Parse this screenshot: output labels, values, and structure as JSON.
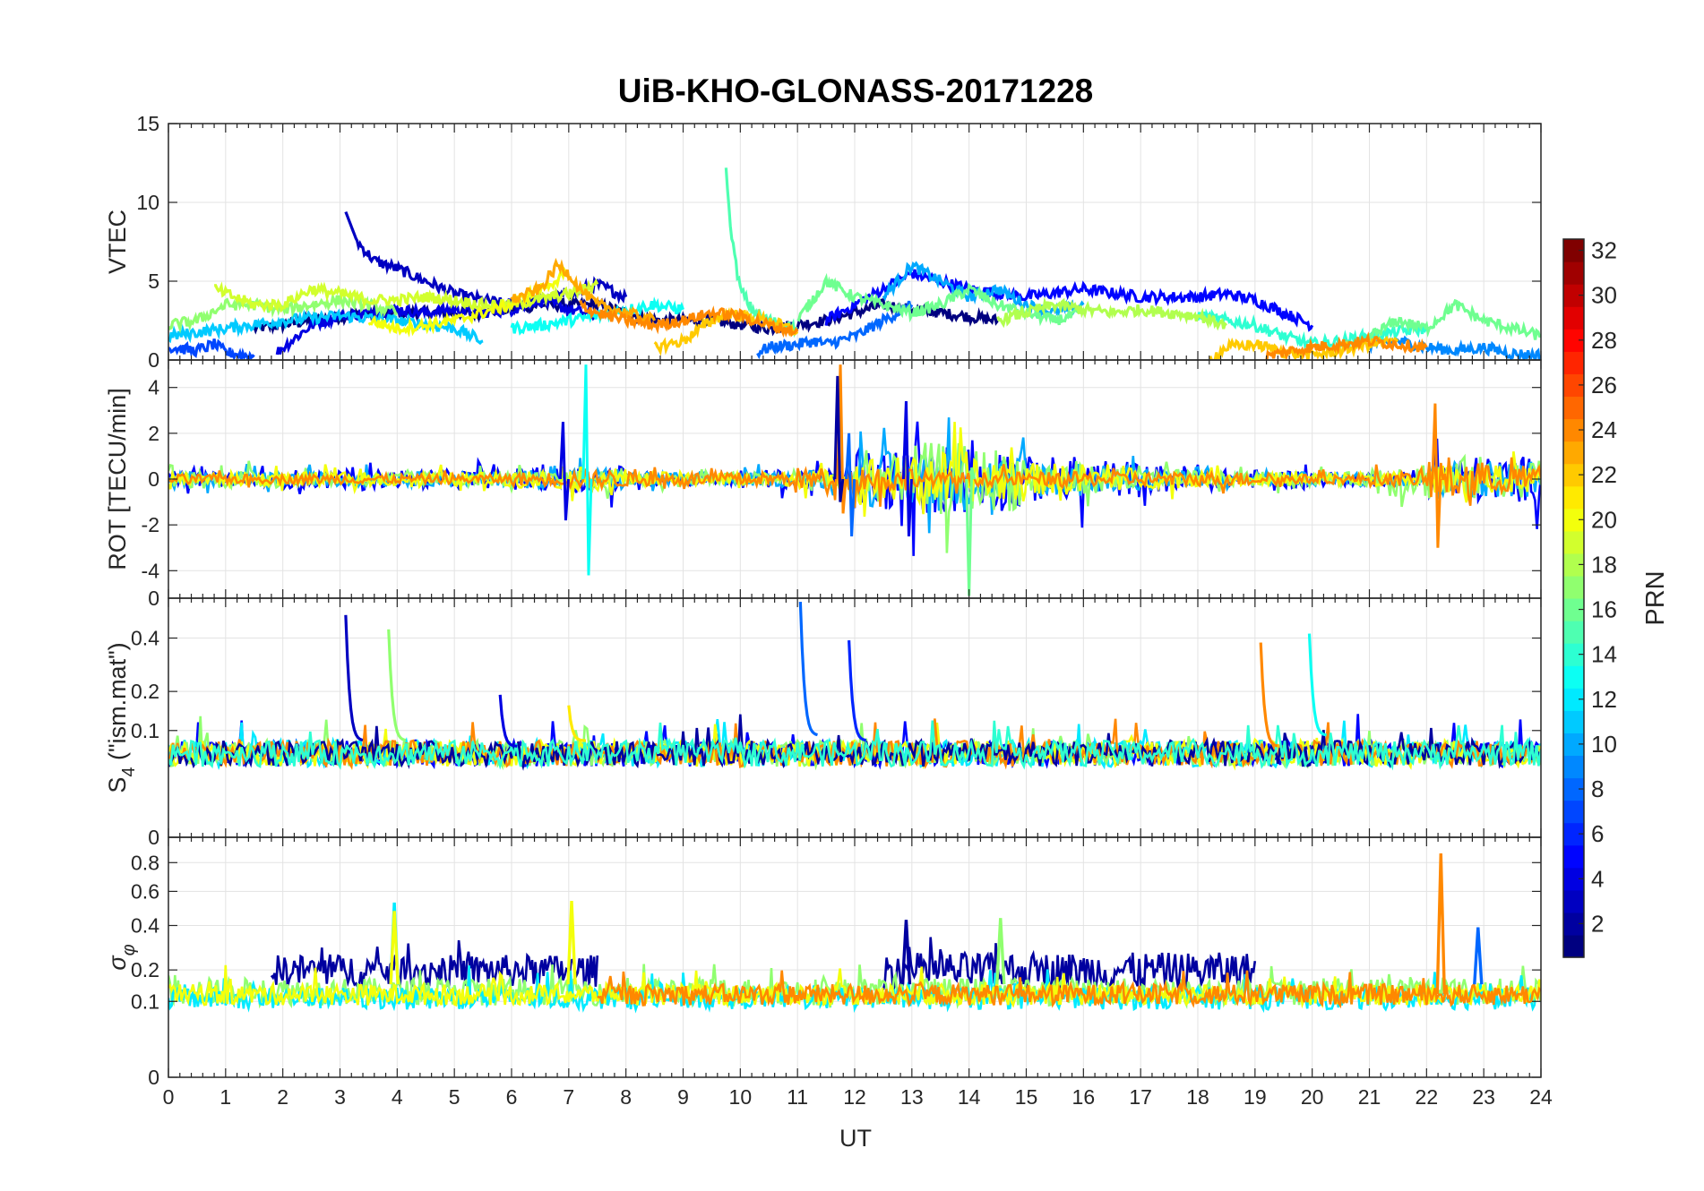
{
  "chart_data": {
    "type": "line",
    "title": "UiB-KHO-GLONASS-20171228",
    "xlabel": "UT",
    "xlim": [
      0,
      24
    ],
    "x_ticks": [
      0,
      1,
      2,
      3,
      4,
      5,
      6,
      7,
      8,
      9,
      10,
      11,
      12,
      13,
      14,
      15,
      16,
      17,
      18,
      19,
      20,
      21,
      22,
      23,
      24
    ],
    "grid": true,
    "colorbar": {
      "label": "PRN",
      "colormap": "jet",
      "range": [
        1,
        32
      ],
      "ticks": [
        2,
        4,
        6,
        8,
        10,
        12,
        14,
        16,
        18,
        20,
        22,
        24,
        26,
        28,
        30,
        32
      ]
    },
    "panels": [
      {
        "ylabel": "VTEC",
        "ylim": [
          0,
          15
        ],
        "y_ticks": [
          0,
          5,
          10,
          15
        ],
        "series": [
          {
            "prn": 1,
            "x": [
              1.5,
              2.5,
              3.5,
              4.5,
              5.5,
              6.5,
              7.5,
              8.5,
              9.5,
              10.5,
              11.5,
              12.5,
              13.5,
              14.5
            ],
            "y": [
              2.0,
              2.5,
              3.0,
              3.0,
              3.0,
              3.5,
              3.5,
              2.5,
              2.5,
              2.0,
              2.5,
              3.5,
              3.0,
              2.5
            ]
          },
          {
            "prn": 3,
            "x": [
              3.1,
              3.3,
              3.6,
              4.0,
              4.5,
              5.0,
              5.5,
              6.0,
              6.5,
              7.0,
              7.5,
              8.0
            ],
            "y": [
              9.4,
              7.5,
              6.3,
              5.8,
              5.0,
              4.2,
              3.8,
              3.5,
              3.8,
              4.2,
              4.8,
              4.0
            ]
          },
          {
            "prn": 4,
            "x": [
              1.9,
              2.5,
              3.0,
              3.5,
              4.0,
              4.5,
              5.0,
              5.5,
              6.0,
              6.5,
              7.0,
              7.5
            ],
            "y": [
              0.5,
              2.2,
              2.8,
              3.0,
              3.2,
              3.0,
              3.2,
              3.0,
              3.2,
              3.8,
              3.2,
              2.8
            ]
          },
          {
            "prn": 5,
            "x": [
              11.5,
              12.0,
              12.5,
              13.0,
              13.5,
              14.0,
              15.0,
              16.0,
              17.0,
              18.0,
              18.5,
              19.0,
              19.5,
              20.0
            ],
            "y": [
              2.5,
              3.5,
              4.5,
              5.5,
              5.0,
              4.5,
              4.0,
              4.5,
              4.0,
              4.0,
              4.2,
              3.8,
              3.0,
              2.2
            ]
          },
          {
            "prn": 7,
            "x": [
              0.0,
              0.5,
              0.8,
              1.0,
              1.5
            ],
            "y": [
              0.8,
              0.6,
              1.0,
              0.5,
              0.2
            ]
          },
          {
            "prn": 8,
            "x": [
              10.3,
              10.5,
              11.0,
              11.3,
              11.5,
              12.0,
              12.5,
              13.0
            ],
            "y": [
              0.5,
              0.8,
              1.0,
              1.2,
              1.0,
              1.5,
              2.5,
              3.5
            ]
          },
          {
            "prn": 9,
            "x": [
              21.0,
              21.5,
              22.0,
              22.5,
              23.0,
              23.5,
              24.0
            ],
            "y": [
              1.0,
              1.2,
              0.8,
              0.6,
              0.8,
              0.4,
              0.3
            ]
          },
          {
            "prn": 10,
            "x": [
              12.5,
              13.0,
              13.5,
              14.0,
              14.5,
              15.0,
              15.5,
              16.0
            ],
            "y": [
              4.0,
              6.0,
              5.0,
              4.0,
              4.5,
              3.5,
              3.0,
              3.5
            ]
          },
          {
            "prn": 11,
            "x": [
              0.0,
              1.0,
              2.0,
              3.0,
              4.0,
              5.0,
              5.5
            ],
            "y": [
              1.5,
              2.0,
              2.5,
              2.8,
              2.5,
              2.0,
              1.2
            ]
          },
          {
            "prn": 13,
            "x": [
              6.0,
              6.5,
              7.0,
              7.5,
              8.0,
              8.5,
              9.0
            ],
            "y": [
              2.0,
              2.2,
              2.5,
              2.8,
              3.2,
              3.5,
              3.2
            ]
          },
          {
            "prn": 14,
            "x": [
              18.0,
              18.5,
              19.0,
              19.5,
              20.0,
              20.5,
              21.0,
              21.5,
              22.0
            ],
            "y": [
              2.8,
              2.5,
              2.2,
              1.5,
              1.0,
              1.2,
              1.5,
              1.8,
              2.0
            ]
          },
          {
            "prn": 15,
            "x": [
              9.75,
              9.8,
              9.9,
              10.0,
              10.2,
              10.5,
              10.8,
              11.0
            ],
            "y": [
              12.2,
              9.5,
              6.5,
              4.5,
              3.2,
              2.5,
              2.2,
              2.0
            ]
          },
          {
            "prn": 16,
            "x": [
              11.0,
              11.5,
              12.0,
              12.5,
              13.0,
              13.5,
              14.0,
              14.5,
              15.0,
              15.5,
              16.0
            ],
            "y": [
              2.5,
              5.0,
              4.0,
              3.5,
              3.0,
              3.5,
              4.5,
              3.5,
              3.0,
              2.5,
              3.0
            ]
          },
          {
            "prn": 16,
            "x": [
              21.0,
              21.5,
              22.0,
              22.5,
              23.0,
              23.5,
              24.0
            ],
            "y": [
              1.5,
              2.5,
              2.0,
              3.5,
              2.5,
              2.0,
              1.5
            ]
          },
          {
            "prn": 17,
            "x": [
              0.0,
              0.5,
              1.0,
              1.5,
              2.0,
              2.5,
              3.0,
              3.5,
              4.0
            ],
            "y": [
              2.2,
              2.5,
              3.5,
              3.5,
              3.2,
              3.5,
              3.8,
              3.5,
              3.0
            ]
          },
          {
            "prn": 18,
            "x": [
              14.5,
              15.0,
              15.5,
              16.0,
              16.5,
              17.0,
              17.5,
              18.0,
              18.5
            ],
            "y": [
              2.5,
              3.0,
              3.5,
              3.2,
              3.0,
              3.2,
              3.0,
              2.8,
              2.2
            ]
          },
          {
            "prn": 19,
            "x": [
              0.8,
              1.5,
              2.0,
              2.5,
              3.0,
              3.5,
              4.0,
              4.5,
              5.0,
              5.5,
              6.0,
              7.0,
              7.5
            ],
            "y": [
              4.5,
              3.5,
              3.5,
              4.5,
              4.2,
              3.8,
              3.8,
              4.0,
              3.8,
              3.5,
              3.5,
              4.2,
              4.8
            ]
          },
          {
            "prn": 20,
            "x": [
              3.5,
              4.0,
              4.5,
              5.0,
              5.5,
              6.0,
              6.5,
              7.0
            ],
            "y": [
              2.5,
              2.0,
              2.2,
              2.5,
              3.0,
              3.5,
              4.5,
              5.5
            ]
          },
          {
            "prn": 22,
            "x": [
              8.5,
              9.0,
              9.5,
              9.8,
              10.0,
              10.5,
              11.0
            ],
            "y": [
              0.8,
              1.2,
              2.5,
              3.0,
              2.8,
              2.5,
              1.8
            ]
          },
          {
            "prn": 23,
            "x": [
              6.0,
              6.5,
              6.8,
              7.0,
              7.2,
              7.5,
              8.0,
              8.5
            ],
            "y": [
              3.8,
              4.5,
              6.0,
              5.5,
              4.5,
              3.5,
              3.0,
              2.5
            ]
          },
          {
            "prn": 22,
            "x": [
              18.2,
              18.5,
              19.0,
              19.5,
              20.0,
              20.5,
              21.0,
              21.5
            ],
            "y": [
              0.0,
              0.8,
              1.0,
              0.5,
              0.3,
              0.6,
              1.0,
              1.2
            ]
          },
          {
            "prn": 24,
            "x": [
              7.2,
              7.5,
              8.0,
              8.5,
              9.0,
              9.5,
              10.0,
              10.5,
              11.0
            ],
            "y": [
              3.5,
              3.0,
              2.5,
              2.2,
              2.5,
              3.0,
              2.8,
              2.2,
              1.8
            ]
          },
          {
            "prn": 24,
            "x": [
              19.2,
              19.5,
              20.0,
              20.5,
              21.0,
              21.5,
              22.0
            ],
            "y": [
              0.2,
              0.5,
              0.8,
              1.0,
              1.2,
              1.0,
              0.8
            ]
          }
        ]
      },
      {
        "ylabel": "ROT [TECU/min]",
        "ylim": [
          -5.2,
          5.2
        ],
        "y_ticks": [
          -4,
          -2,
          0,
          2,
          4
        ],
        "spikes": [
          {
            "prn": 13,
            "x": 7.3,
            "y": [
              5.0,
              -4.2
            ]
          },
          {
            "prn": 24,
            "x": 11.75,
            "y": [
              5.0,
              -1.5
            ]
          },
          {
            "prn": 2,
            "x": 11.7,
            "y": [
              4.5,
              -1.0
            ]
          },
          {
            "prn": 16,
            "x": 14.0,
            "y": [
              -5.1,
              0.5
            ]
          },
          {
            "prn": 4,
            "x": 12.9,
            "y": [
              3.4,
              -2.5
            ]
          },
          {
            "prn": 24,
            "x": 22.15,
            "y": [
              3.3,
              -3.0
            ]
          },
          {
            "prn": 4,
            "x": 6.9,
            "y": [
              2.5,
              -1.8
            ]
          },
          {
            "prn": 8,
            "x": 11.9,
            "y": [
              2.0,
              -2.5
            ]
          }
        ],
        "noise_bands": [
          {
            "prn": 5,
            "x": [
              0,
              24
            ],
            "amplitude": [
              0.3,
              0.3,
              0.4,
              0.4,
              0.4,
              0.4,
              0.5,
              0.6,
              0.3,
              0.3,
              0.4,
              0.4,
              1.4,
              1.6,
              1.4,
              1.0,
              0.8,
              0.6,
              0.4,
              0.4,
              0.3,
              0.3,
              1.0,
              1.0,
              0.3
            ]
          },
          {
            "prn": 10,
            "x": [
              0,
              24
            ],
            "amplitude": [
              0.3,
              0.3,
              0.3,
              0.3,
              0.3,
              0.3,
              0.4,
              0.5,
              0.3,
              0.3,
              0.3,
              0.4,
              1.2,
              1.4,
              1.0,
              0.8,
              0.6,
              0.5,
              0.3,
              0.3,
              0.3,
              0.3,
              0.8,
              0.8,
              0.3
            ]
          },
          {
            "prn": 17,
            "x": [
              0,
              24
            ],
            "amplitude": [
              0.4,
              0.4,
              0.3,
              0.3,
              0.3,
              0.3,
              0.3,
              0.4,
              0.3,
              0.3,
              0.3,
              0.4,
              1.0,
              1.6,
              1.4,
              0.8,
              0.6,
              0.4,
              0.3,
              0.3,
              0.3,
              0.8,
              1.0,
              0.8,
              0.3
            ]
          },
          {
            "prn": 20,
            "x": [
              0,
              24
            ],
            "amplitude": [
              0.3,
              0.3,
              0.3,
              0.3,
              0.3,
              0.3,
              0.4,
              0.5,
              0.3,
              0.3,
              0.3,
              0.4,
              1.0,
              1.2,
              1.0,
              0.7,
              0.5,
              0.4,
              0.3,
              0.3,
              0.3,
              0.3,
              0.6,
              0.6,
              0.3
            ]
          },
          {
            "prn": 24,
            "x": [
              0,
              24
            ],
            "amplitude": [
              0.2,
              0.2,
              0.2,
              0.2,
              0.2,
              0.2,
              0.3,
              0.4,
              0.3,
              0.3,
              0.3,
              0.5,
              0.6,
              0.3,
              0.3,
              0.3,
              0.3,
              0.3,
              0.3,
              0.2,
              0.2,
              0.3,
              1.0,
              0.6,
              0.2
            ]
          }
        ]
      },
      {
        "ylabel": "S4 (\"ism.mat\")",
        "ylabel_main": "S",
        "ylabel_sub": "4",
        "ylabel_rest": " (\"ism.mat\")",
        "ylim": [
          0,
          0.6
        ],
        "scale": "reciprocal",
        "y_ticks": [
          0,
          0.1,
          0.2,
          0.4
        ],
        "y_top_label": "0",
        "spikes": [
          {
            "prn": 3,
            "x": 3.1,
            "y": [
              0.51,
              0.08
            ]
          },
          {
            "prn": 17,
            "x": 3.85,
            "y": [
              0.44,
              0.08
            ]
          },
          {
            "prn": 8,
            "x": 11.05,
            "y": [
              0.58,
              0.09
            ]
          },
          {
            "prn": 6,
            "x": 11.9,
            "y": [
              0.39,
              0.08
            ]
          },
          {
            "prn": 24,
            "x": 19.1,
            "y": [
              0.38,
              0.07
            ]
          },
          {
            "prn": 13,
            "x": 19.95,
            "y": [
              0.42,
              0.09
            ]
          },
          {
            "prn": 4,
            "x": 5.8,
            "y": [
              0.19,
              0.07
            ]
          },
          {
            "prn": 21,
            "x": 7.0,
            "y": [
              0.16,
              0.08
            ]
          }
        ],
        "baseline": 0.06
      },
      {
        "ylabel": "σφ",
        "ylim": [
          0,
          1.0
        ],
        "scale": "sqrt",
        "y_ticks": [
          0,
          0.1,
          0.2,
          0.4,
          0.6,
          0.8
        ],
        "spikes": [
          {
            "prn": 24,
            "x": 22.25,
            "y": [
              0.87,
              0.12
            ]
          },
          {
            "prn": 20,
            "x": 7.05,
            "y": [
              0.54,
              0.15
            ]
          },
          {
            "prn": 12,
            "x": 3.95,
            "y": [
              0.53,
              0.15
            ]
          },
          {
            "prn": 20,
            "x": 3.95,
            "y": [
              0.48,
              0.15
            ]
          },
          {
            "prn": 2,
            "x": 12.9,
            "y": [
              0.43,
              0.15
            ]
          },
          {
            "prn": 17,
            "x": 14.55,
            "y": [
              0.44,
              0.15
            ]
          },
          {
            "prn": 8,
            "x": 22.9,
            "y": [
              0.39,
              0.15
            ]
          }
        ],
        "bands": [
          {
            "prn": 2,
            "x": [
              1.8,
              7.5
            ],
            "mean": 0.2,
            "amp": 0.06
          },
          {
            "prn": 2,
            "x": [
              12.5,
              19.0
            ],
            "mean": 0.2,
            "amp": 0.07
          },
          {
            "prn": 17,
            "x": [
              0,
              24
            ],
            "mean": 0.13,
            "amp": 0.04
          },
          {
            "prn": 12,
            "x": [
              0,
              24
            ],
            "mean": 0.11,
            "amp": 0.03
          },
          {
            "prn": 20,
            "x": [
              0,
              24
            ],
            "mean": 0.12,
            "amp": 0.03
          },
          {
            "prn": 24,
            "x": [
              7.5,
              24
            ],
            "mean": 0.12,
            "amp": 0.03
          }
        ]
      }
    ]
  }
}
